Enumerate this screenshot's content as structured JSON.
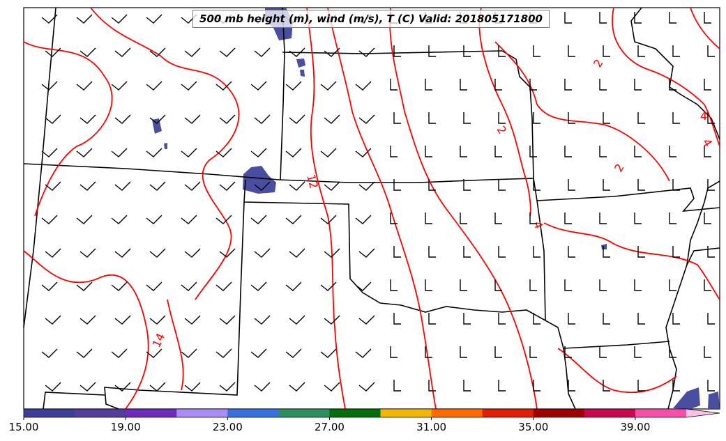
{
  "title": "500 mb height (m), wind (m/s), T (C) Valid: 201805171800",
  "temperature_contour_labels": [
    "12",
    "14",
    "2",
    "4",
    "2",
    "2",
    "4",
    "4"
  ],
  "colorbar": {
    "tick_labels": [
      "15.00",
      "19.00",
      "23.00",
      "27.00",
      "31.00",
      "35.00",
      "39.00"
    ],
    "colors": [
      "#3b3f99",
      "#553d9e",
      "#6e2cbf",
      "#a98cf5",
      "#3a6fe0",
      "#2e8f5e",
      "#056e0c",
      "#f2b705",
      "#ff6a00",
      "#e01e05",
      "#9e0000",
      "#c7084f",
      "#f74fa8",
      "#ffc0e6"
    ],
    "extend": "max"
  },
  "contour_color": "#ff0000",
  "fill_color": "#3b3f99"
}
